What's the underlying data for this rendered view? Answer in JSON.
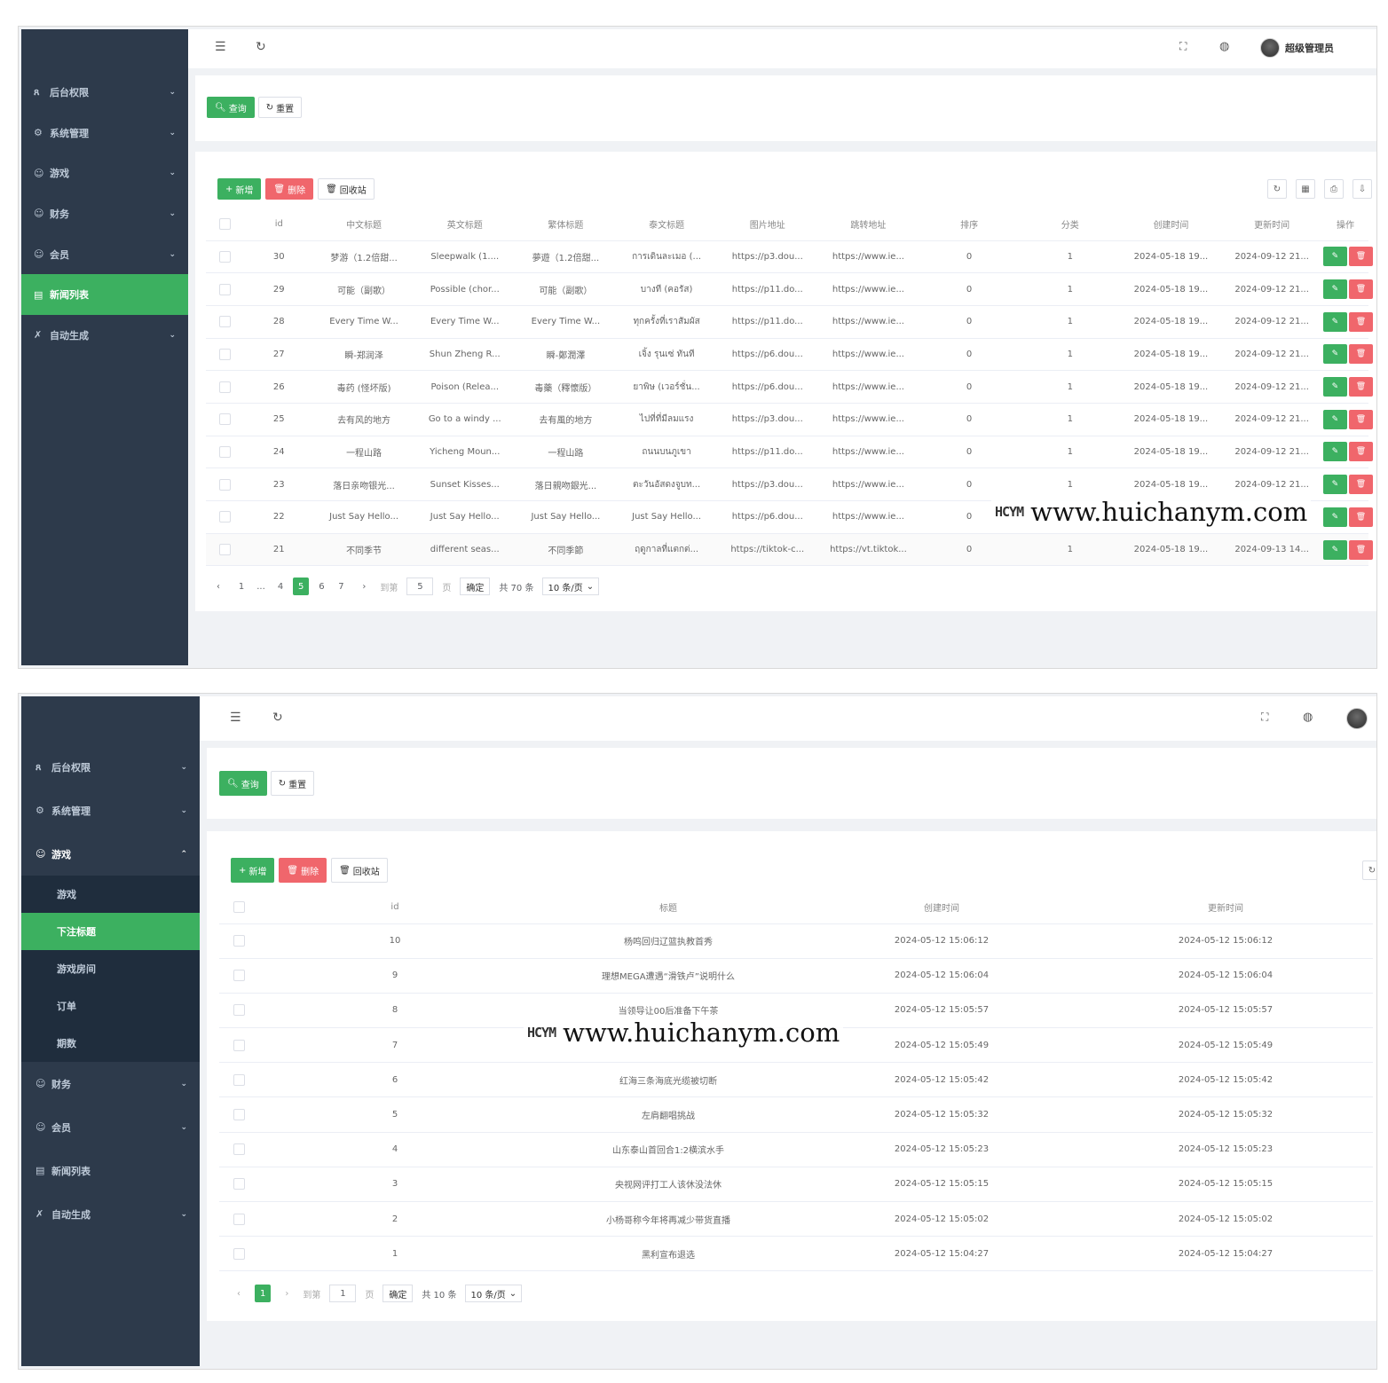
{
  "watermark": {
    "logo": "HCYM",
    "url": "www.huichanym.com"
  },
  "shot1": {
    "menu": [
      {
        "label": "后台权限",
        "icon": "user-icon",
        "glyph": "ጸ"
      },
      {
        "label": "系统管理",
        "icon": "gear-icon",
        "glyph": "⚙"
      },
      {
        "label": "游戏",
        "icon": "smile-icon",
        "glyph": "☺"
      },
      {
        "label": "财务",
        "icon": "smile-icon",
        "glyph": "☺"
      },
      {
        "label": "会员",
        "icon": "smile-icon",
        "glyph": "☺"
      },
      {
        "label": "新闻列表",
        "icon": "calendar-icon",
        "glyph": "▤",
        "active": true
      },
      {
        "label": "自动生成",
        "icon": "tools-icon",
        "glyph": "✗"
      }
    ],
    "user_name": "超级管理员",
    "search_label": "查询",
    "reset_label": "重置",
    "add_label": "新增",
    "delete_label": "删除",
    "recycle_label": "回收站",
    "columns": [
      "id",
      "中文标题",
      "英文标题",
      "繁体标题",
      "泰文标题",
      "图片地址",
      "跳转地址",
      "排序",
      "分类",
      "创建时间",
      "更新时间",
      "操作"
    ],
    "rows": [
      [
        "30",
        "梦游（1.2倍甜...",
        "Sleepwalk (1....",
        "夢遊（1.2倍甜...",
        "การเดินละเมอ (...",
        "https://p3.dou...",
        "https://www.ie...",
        "0",
        "1",
        "2024-05-18 19...",
        "2024-09-12 21..."
      ],
      [
        "29",
        "可能（副歌）",
        "Possible (chor...",
        "可能（副歌）",
        "บางที (คอรัส)",
        "https://p11.do...",
        "https://www.ie...",
        "0",
        "1",
        "2024-05-18 19...",
        "2024-09-12 21..."
      ],
      [
        "28",
        "Every Time W...",
        "Every Time W...",
        "Every Time W...",
        "ทุกครั้งที่เราสัมผัส",
        "https://p11.do...",
        "https://www.ie...",
        "0",
        "1",
        "2024-05-18 19...",
        "2024-09-12 21..."
      ],
      [
        "27",
        "瞬-郑润泽",
        "Shun Zheng R...",
        "瞬-鄭潤澤",
        "เจิ้ง รุนเซ่ ทันที",
        "https://p6.dou...",
        "https://www.ie...",
        "0",
        "1",
        "2024-05-18 19...",
        "2024-09-12 21..."
      ],
      [
        "26",
        "毒药 (怪坏版)",
        "Poison (Relea...",
        "毒藥（釋懷版）",
        "ยาพิษ (เวอร์ชั่น...",
        "https://p6.dou...",
        "https://www.ie...",
        "0",
        "1",
        "2024-05-18 19...",
        "2024-09-12 21..."
      ],
      [
        "25",
        "去有风的地方",
        "Go to a windy ...",
        "去有風的地方",
        "ไปที่ที่มีลมแรง",
        "https://p3.dou...",
        "https://www.ie...",
        "0",
        "1",
        "2024-05-18 19...",
        "2024-09-12 21..."
      ],
      [
        "24",
        "一程山路",
        "Yicheng Moun...",
        "一程山路",
        "ถนนบนภูเขา",
        "https://p11.do...",
        "https://www.ie...",
        "0",
        "1",
        "2024-05-18 19...",
        "2024-09-12 21..."
      ],
      [
        "23",
        "落日亲吻银光...",
        "Sunset Kisses...",
        "落日親吻銀光...",
        "ตะวันอัสดงจูบท...",
        "https://p3.dou...",
        "https://www.ie...",
        "0",
        "1",
        "2024-05-18 19...",
        "2024-09-12 21..."
      ],
      [
        "22",
        "Just Say Hello...",
        "Just Say Hello...",
        "Just Say Hello...",
        "Just Say Hello...",
        "https://p6.dou...",
        "https://www.ie...",
        "0",
        "",
        "",
        ""
      ],
      [
        "21",
        "不同季节",
        "different seas...",
        "不同季節",
        "ฤดูกาลที่แตกต่...",
        "https://tiktok-c...",
        "https://vt.tiktok...",
        "0",
        "1",
        "2024-05-18 19...",
        "2024-09-13 14..."
      ]
    ],
    "pagination": {
      "pages": [
        "1",
        "...",
        "4",
        "5",
        "6",
        "7"
      ],
      "current": "5",
      "goto_label": "到第",
      "goto_value": "5",
      "page_unit": "页",
      "confirm": "确定",
      "total": "共 70 条",
      "size": "10 条/页"
    }
  },
  "shot2": {
    "menu_top": [
      {
        "label": "后台权限",
        "icon": "user-icon",
        "glyph": "ጸ"
      },
      {
        "label": "系统管理",
        "icon": "gear-icon",
        "glyph": "⚙"
      },
      {
        "label": "游戏",
        "icon": "smile-icon",
        "glyph": "☺"
      }
    ],
    "submenu": [
      {
        "label": "游戏"
      },
      {
        "label": "下注标题",
        "active": true
      },
      {
        "label": "游戏房间"
      },
      {
        "label": "订单"
      },
      {
        "label": "期数"
      }
    ],
    "menu_bottom": [
      {
        "label": "财务",
        "icon": "smile-icon",
        "glyph": "☺",
        "arrow": true
      },
      {
        "label": "会员",
        "icon": "smile-icon",
        "glyph": "☺",
        "arrow": true
      },
      {
        "label": "新闻列表",
        "icon": "calendar-icon",
        "glyph": "▤",
        "arrow": false
      },
      {
        "label": "自动生成",
        "icon": "tools-icon",
        "glyph": "✗",
        "arrow": true
      }
    ],
    "search_label": "查询",
    "reset_label": "重置",
    "add_label": "新增",
    "delete_label": "删除",
    "recycle_label": "回收站",
    "columns": [
      "id",
      "标题",
      "创建时间",
      "更新时间"
    ],
    "rows": [
      [
        "10",
        "杨鸣回归辽篮执教首秀",
        "2024-05-12 15:06:12",
        "2024-05-12 15:06:12"
      ],
      [
        "9",
        "理想MEGA遭遇“滑铁卢”说明什么",
        "2024-05-12 15:06:04",
        "2024-05-12 15:06:04"
      ],
      [
        "8",
        "当领导让00后准备下午茶",
        "2024-05-12 15:05:57",
        "2024-05-12 15:05:57"
      ],
      [
        "7",
        "",
        "2024-05-12 15:05:49",
        "2024-05-12 15:05:49"
      ],
      [
        "6",
        "红海三条海底光缆被切断",
        "2024-05-12 15:05:42",
        "2024-05-12 15:05:42"
      ],
      [
        "5",
        "左肩翻唱挑战",
        "2024-05-12 15:05:32",
        "2024-05-12 15:05:32"
      ],
      [
        "4",
        "山东泰山首回合1:2横滨水手",
        "2024-05-12 15:05:23",
        "2024-05-12 15:05:23"
      ],
      [
        "3",
        "央视网评打工人该休没法休",
        "2024-05-12 15:05:15",
        "2024-05-12 15:05:15"
      ],
      [
        "2",
        "小杨哥称今年将再减少带货直播",
        "2024-05-12 15:05:02",
        "2024-05-12 15:05:02"
      ],
      [
        "1",
        "黑利宣布退选",
        "2024-05-12 15:04:27",
        "2024-05-12 15:04:27"
      ]
    ],
    "pagination": {
      "current": "1",
      "goto_label": "到第",
      "goto_value": "1",
      "page_unit": "页",
      "confirm": "确定",
      "total": "共 10 条",
      "size": "10 条/页"
    }
  }
}
